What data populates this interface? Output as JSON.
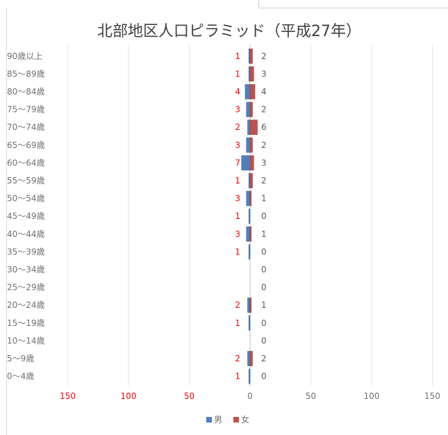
{
  "chart_data": {
    "type": "bar",
    "orientation": "horizontal",
    "title": "北部地区人口ピラミッド（平成27年）",
    "categories": [
      "90歳以上",
      "85～89歳",
      "80～84歳",
      "75～79歳",
      "70～74歳",
      "65～69歳",
      "60～64歳",
      "55～59歳",
      "50～54歳",
      "45～49歳",
      "40～44歳",
      "35～39歳",
      "30～34歳",
      "25～29歳",
      "20～24歳",
      "15～19歳",
      "10～14歳",
      "5～9歳",
      "0～4歳"
    ],
    "series": [
      {
        "name": "男",
        "color": "#4f7fbf",
        "values": [
          1,
          1,
          4,
          3,
          2,
          3,
          7,
          1,
          3,
          1,
          3,
          1,
          0,
          0,
          2,
          1,
          0,
          2,
          1
        ]
      },
      {
        "name": "女",
        "color": "#c0504d",
        "values": [
          2,
          3,
          4,
          2,
          6,
          2,
          3,
          2,
          1,
          0,
          1,
          0,
          0,
          0,
          1,
          0,
          0,
          2,
          0
        ]
      }
    ],
    "male_labels": [
      "1",
      "1",
      "4",
      "3",
      "2",
      "3",
      "7",
      "1",
      "3",
      "1",
      "3",
      "1",
      "",
      "",
      "2",
      "1",
      "",
      "2",
      "1"
    ],
    "female_labels": [
      "2",
      "3",
      "4",
      "2",
      "6",
      "2",
      "3",
      "2",
      "1",
      "0",
      "1",
      "0",
      "0",
      "0",
      "1",
      "0",
      "0",
      "2",
      "0"
    ],
    "x_ticks": [
      {
        "value": -150,
        "label": "150",
        "color": "#ff0000"
      },
      {
        "value": -100,
        "label": "100",
        "color": "#ff0000"
      },
      {
        "value": -50,
        "label": "50",
        "color": "#ff0000"
      },
      {
        "value": 0,
        "label": "0",
        "color": "#707070"
      },
      {
        "value": 50,
        "label": "50",
        "color": "#707070"
      },
      {
        "value": 100,
        "label": "100",
        "color": "#707070"
      },
      {
        "value": 150,
        "label": "150",
        "color": "#707070"
      }
    ],
    "xlim": [
      -160,
      160
    ],
    "grid": true,
    "legend_position": "bottom",
    "male_label_color": "#ff0000",
    "female_label_color": "#595959"
  }
}
